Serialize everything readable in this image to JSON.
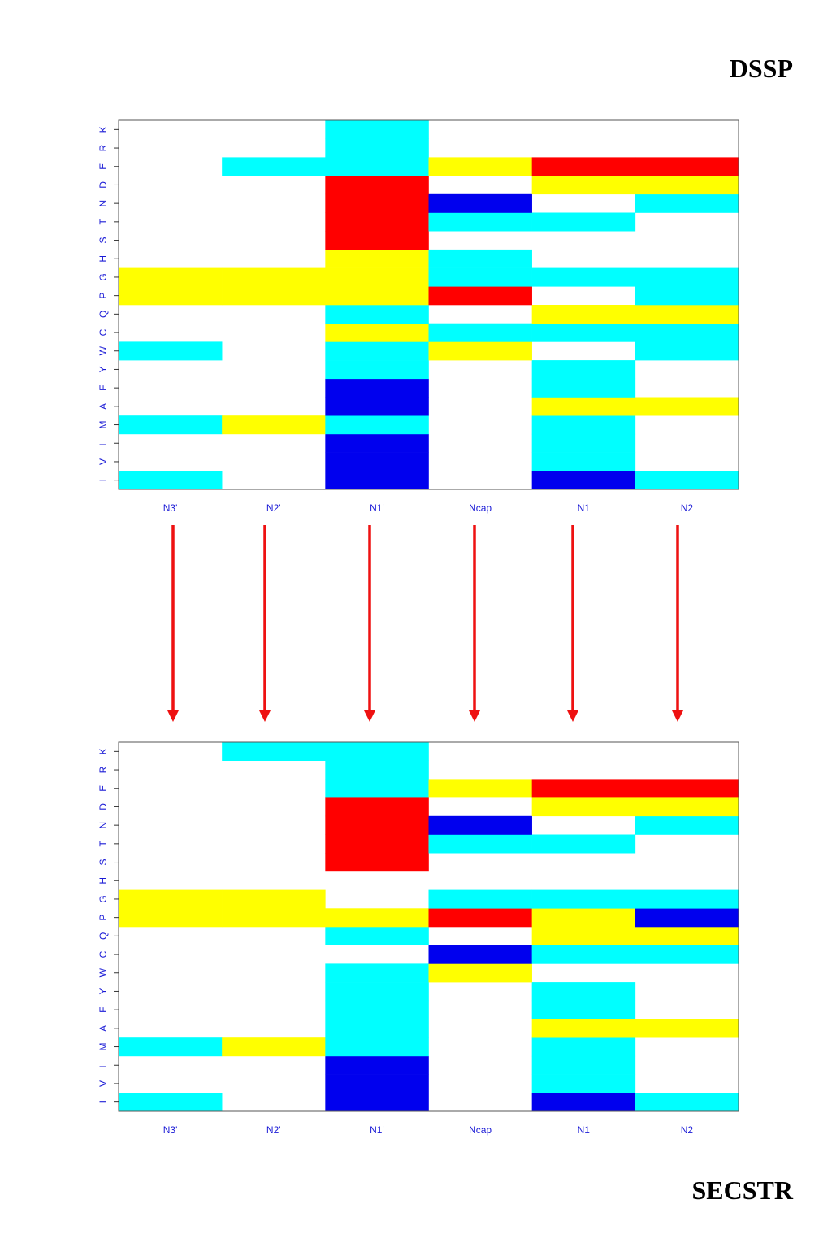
{
  "labels": {
    "top": "DSSP",
    "bottom": "SECSTR"
  },
  "colors": {
    "c": "#00ffff",
    "y": "#ffff00",
    "r": "#ff0000",
    "b": "#0000ee",
    "w": "#ffffff",
    "arrow": "#ee1111",
    "tick": "#1a1ad6"
  },
  "chart_data": [
    {
      "type": "heatmap",
      "title": "DSSP",
      "columns": [
        "N3'",
        "N2'",
        "N1'",
        "Ncap",
        "N1",
        "N2"
      ],
      "rows_bottom_to_top": [
        "I",
        "V",
        "L",
        "M",
        "A",
        "F",
        "Y",
        "W",
        "C",
        "Q",
        "P",
        "G",
        "H",
        "S",
        "T",
        "N",
        "D",
        "E",
        "R",
        "K"
      ],
      "cells": {
        "I": [
          "c",
          "w",
          "b",
          "w",
          "b",
          "c"
        ],
        "V": [
          "w",
          "w",
          "b",
          "w",
          "c",
          "w"
        ],
        "L": [
          "w",
          "w",
          "b",
          "w",
          "c",
          "w"
        ],
        "M": [
          "c",
          "y",
          "c",
          "w",
          "c",
          "w"
        ],
        "A": [
          "w",
          "w",
          "b",
          "w",
          "y",
          "y"
        ],
        "F": [
          "w",
          "w",
          "b",
          "w",
          "c",
          "w"
        ],
        "Y": [
          "w",
          "w",
          "c",
          "w",
          "c",
          "w"
        ],
        "W": [
          "c",
          "w",
          "c",
          "y",
          "w",
          "c"
        ],
        "C": [
          "w",
          "w",
          "y",
          "c",
          "c",
          "c"
        ],
        "Q": [
          "w",
          "w",
          "c",
          "w",
          "y",
          "y"
        ],
        "P": [
          "y",
          "y",
          "y",
          "r",
          "w",
          "c"
        ],
        "G": [
          "y",
          "y",
          "y",
          "c",
          "c",
          "c"
        ],
        "H": [
          "w",
          "w",
          "y",
          "c",
          "w",
          "w"
        ],
        "S": [
          "w",
          "w",
          "r",
          "w",
          "w",
          "w"
        ],
        "T": [
          "w",
          "w",
          "r",
          "c",
          "c",
          "w"
        ],
        "N": [
          "w",
          "w",
          "r",
          "b",
          "w",
          "c"
        ],
        "D": [
          "w",
          "w",
          "r",
          "w",
          "y",
          "y"
        ],
        "E": [
          "w",
          "c",
          "c",
          "y",
          "r",
          "r"
        ],
        "R": [
          "w",
          "w",
          "c",
          "w",
          "w",
          "w"
        ],
        "K": [
          "w",
          "w",
          "c",
          "w",
          "w",
          "w"
        ]
      }
    },
    {
      "type": "heatmap",
      "title": "SECSTR",
      "columns": [
        "N3'",
        "N2'",
        "N1'",
        "Ncap",
        "N1",
        "N2"
      ],
      "rows_bottom_to_top": [
        "I",
        "V",
        "L",
        "M",
        "A",
        "F",
        "Y",
        "W",
        "C",
        "Q",
        "P",
        "G",
        "H",
        "S",
        "T",
        "N",
        "D",
        "E",
        "R",
        "K"
      ],
      "cells": {
        "I": [
          "c",
          "w",
          "b",
          "w",
          "b",
          "c"
        ],
        "V": [
          "w",
          "w",
          "b",
          "w",
          "c",
          "w"
        ],
        "L": [
          "w",
          "w",
          "b",
          "w",
          "c",
          "w"
        ],
        "M": [
          "c",
          "y",
          "c",
          "w",
          "c",
          "w"
        ],
        "A": [
          "w",
          "w",
          "c",
          "w",
          "y",
          "y"
        ],
        "F": [
          "w",
          "w",
          "c",
          "w",
          "c",
          "w"
        ],
        "Y": [
          "w",
          "w",
          "c",
          "w",
          "c",
          "w"
        ],
        "W": [
          "w",
          "w",
          "c",
          "y",
          "w",
          "w"
        ],
        "C": [
          "w",
          "w",
          "w",
          "b",
          "c",
          "c"
        ],
        "Q": [
          "w",
          "w",
          "c",
          "w",
          "y",
          "y"
        ],
        "P": [
          "y",
          "y",
          "y",
          "r",
          "y",
          "b"
        ],
        "G": [
          "y",
          "y",
          "w",
          "c",
          "c",
          "c"
        ],
        "H": [
          "w",
          "w",
          "w",
          "w",
          "w",
          "w"
        ],
        "S": [
          "w",
          "w",
          "r",
          "w",
          "w",
          "w"
        ],
        "T": [
          "w",
          "w",
          "r",
          "c",
          "c",
          "w"
        ],
        "N": [
          "w",
          "w",
          "r",
          "b",
          "w",
          "c"
        ],
        "D": [
          "w",
          "w",
          "r",
          "w",
          "y",
          "y"
        ],
        "E": [
          "w",
          "w",
          "c",
          "y",
          "r",
          "r"
        ],
        "R": [
          "w",
          "w",
          "c",
          "w",
          "w",
          "w"
        ],
        "K": [
          "w",
          "c",
          "c",
          "w",
          "w",
          "w"
        ]
      }
    }
  ]
}
